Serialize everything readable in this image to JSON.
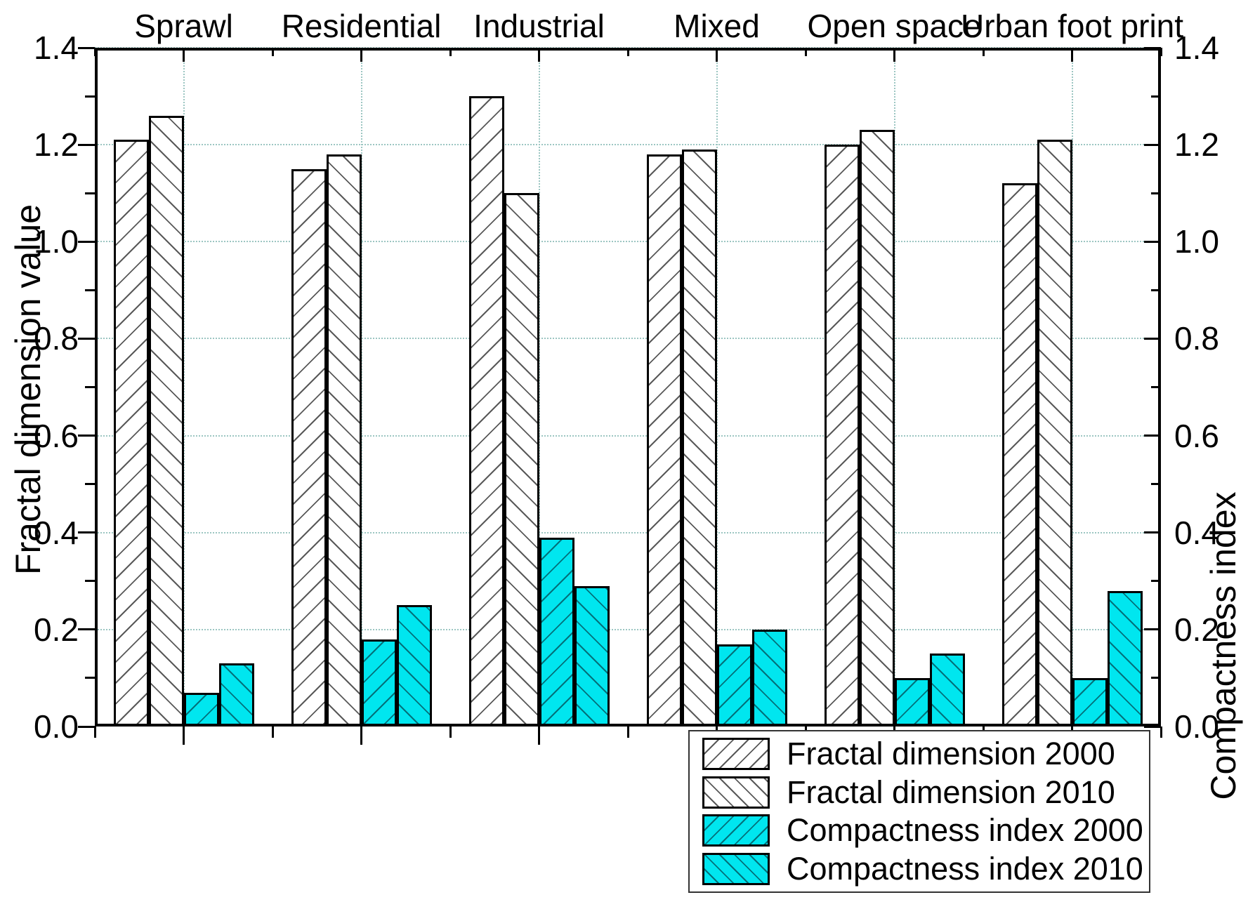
{
  "chart_data": {
    "type": "bar",
    "title": "",
    "categories": [
      "Sprawl",
      "Residential",
      "Industrial",
      "Mixed",
      "Open space",
      "Urban foot print"
    ],
    "series": [
      {
        "name": "Fractal dimension 2000",
        "fill": "white",
        "hatch": "forward",
        "values": [
          1.21,
          1.15,
          1.3,
          1.18,
          1.2,
          1.12
        ]
      },
      {
        "name": "Fractal dimension 2010",
        "fill": "white",
        "hatch": "backward",
        "values": [
          1.26,
          1.18,
          1.1,
          1.19,
          1.23,
          1.21
        ]
      },
      {
        "name": "Compactness index 2000",
        "fill": "cyan",
        "hatch": "forward",
        "values": [
          0.07,
          0.18,
          0.39,
          0.17,
          0.1,
          0.1
        ]
      },
      {
        "name": "Compactness index 2010",
        "fill": "cyan",
        "hatch": "backward",
        "values": [
          0.13,
          0.25,
          0.29,
          0.2,
          0.15,
          0.28
        ]
      }
    ],
    "left_axis": {
      "title": "Fractal dimension value",
      "tick_labels": [
        "0.0",
        "0.2",
        "0.4",
        "0.6",
        "0.8",
        "1.0",
        "1.2",
        "1.4"
      ],
      "min": 0.0,
      "max": 1.4,
      "major_step": 0.2,
      "minor_step": 0.1
    },
    "right_axis": {
      "title": "Compactness index",
      "tick_labels": [
        "0.0",
        "0.2",
        "0.4",
        "0.6",
        "0.8",
        "1.0",
        "1.2",
        "1.4"
      ],
      "min": 0.0,
      "max": 1.4,
      "major_step": 0.2,
      "minor_step": 0.1
    },
    "grid": true,
    "legend_position": "bottom-right",
    "legend_entries": [
      "Fractal dimension 2000",
      "Fractal dimension 2010",
      "Compactness index 2000",
      "Compactness index 2010"
    ],
    "colors": {
      "cyan_fill": "#00e6ef",
      "white_fill": "#ffffff",
      "grid": "#9cc6c2",
      "axis": "#000000",
      "text": "#000000"
    }
  }
}
